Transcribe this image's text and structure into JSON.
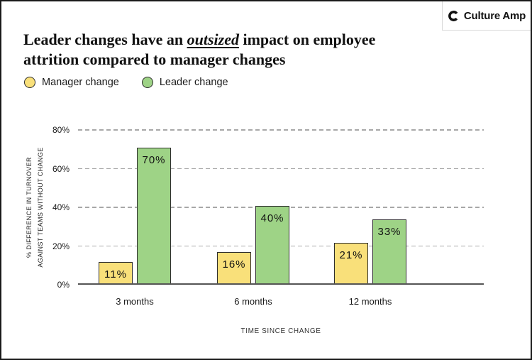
{
  "header": {
    "title_prefix": "Leader changes have an ",
    "title_highlight": "outsized",
    "title_line1_end": " impact on employee",
    "title_line2": "attrition compared to manager changes",
    "logo_text": "Culture Amp"
  },
  "legend": {
    "items": [
      {
        "label": "Manager change",
        "color": "#F9E07A"
      },
      {
        "label": "Leader change",
        "color": "#9ED386"
      }
    ]
  },
  "chart_data": {
    "type": "bar",
    "title": "Leader changes have an outsized impact on employee attrition compared to manager changes",
    "categories": [
      "3 months",
      "6 months",
      "12 months"
    ],
    "series": [
      {
        "name": "Manager change",
        "values": [
          11,
          16,
          21
        ],
        "color": "#F9E07A"
      },
      {
        "name": "Leader change",
        "values": [
          70,
          40,
          33
        ],
        "color": "#9ED386"
      }
    ],
    "value_label_suffix": "%",
    "xlabel": "TIME SINCE CHANGE",
    "ylabel_line1": "% DIFFERENCE IN TURNOVER",
    "ylabel_line2": "AGAINST TEAMS WITHOUT CHANGE",
    "ylim": [
      0,
      80
    ],
    "yticks": [
      0,
      20,
      40,
      60,
      80
    ],
    "ytick_suffix": "%",
    "grid": "horizontal-dashed",
    "legend_position": "top-left"
  },
  "colors": {
    "bar_border": "#2e2e2e",
    "gridline": "#a8a8a8",
    "axis": "#555555",
    "text": "#1a1a1a",
    "frame_border": "#1a1a1a"
  }
}
